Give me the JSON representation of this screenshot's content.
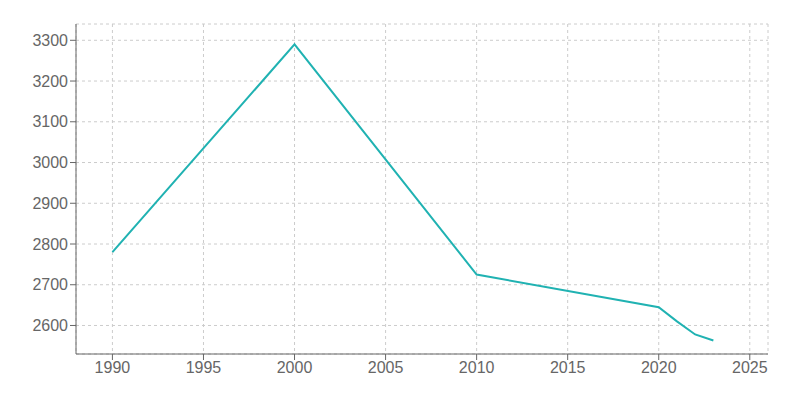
{
  "chart_data": {
    "type": "line",
    "x": [
      1990,
      2000,
      2010,
      2020,
      2021,
      2022,
      2023
    ],
    "values": [
      2780,
      3290,
      2725,
      2645,
      2610,
      2578,
      2563
    ],
    "color": "#20B2B2",
    "xlim": [
      1988,
      2026
    ],
    "ylim": [
      2530,
      3340
    ],
    "xticks": [
      1990,
      1995,
      2000,
      2005,
      2010,
      2015,
      2020,
      2025
    ],
    "yticks": [
      2600,
      2700,
      2800,
      2900,
      3000,
      3100,
      3200,
      3300
    ],
    "grid": true
  }
}
